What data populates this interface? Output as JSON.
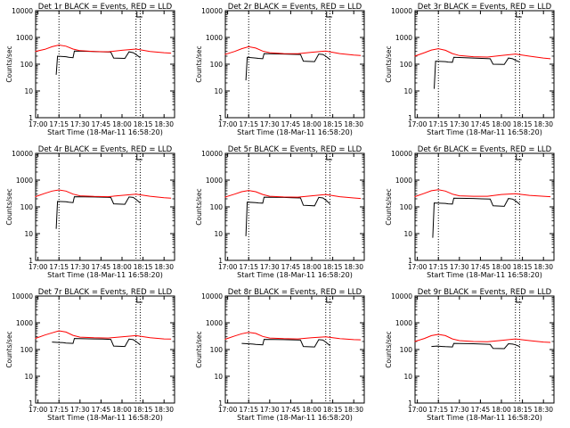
{
  "colors": {
    "events": "#000000",
    "lld": "#ff0000",
    "axis": "#000000",
    "marker": "#000000"
  },
  "chart_data": [
    {
      "type": "line",
      "title": "Det 1r BLACK = Events, RED = LLD",
      "xlabel": "Start Time (18-Mar-11 16:58:20)",
      "ylabel": "Counts/sec",
      "y_scale": "log",
      "ylim": [
        1,
        10000
      ],
      "x_ticks": [
        "17:00",
        "17:15",
        "17:30",
        "17:45",
        "18:00",
        "18:15",
        "18:30"
      ],
      "y_ticks": [
        "1",
        "10",
        "100",
        "1000",
        "10000"
      ],
      "vertical_markers": [
        "17:15",
        "18:10",
        "18:13"
      ],
      "grid": false,
      "series": [
        {
          "name": "Events",
          "x": [
            "17:13",
            "17:14",
            "17:20",
            "17:22",
            "17:25",
            "17:26",
            "17:40",
            "17:46",
            "17:52",
            "17:54",
            "18:02",
            "18:05",
            "18:08",
            "18:10",
            "18:13"
          ],
          "values": [
            40,
            200,
            190,
            180,
            175,
            310,
            300,
            290,
            285,
            170,
            165,
            290,
            270,
            230,
            175
          ]
        },
        {
          "name": "LLD",
          "x": [
            "16:58",
            "17:05",
            "17:10",
            "17:15",
            "17:20",
            "17:25",
            "17:30",
            "17:40",
            "17:50",
            "18:00",
            "18:10",
            "18:20",
            "18:30",
            "18:35"
          ],
          "values": [
            300,
            360,
            450,
            520,
            470,
            370,
            320,
            300,
            290,
            330,
            370,
            300,
            270,
            260
          ]
        }
      ]
    },
    {
      "type": "line",
      "title": "Det 2r BLACK = Events, RED = LLD",
      "xlabel": "Start Time (18-Mar-11 16:58:20)",
      "ylabel": "Counts/sec",
      "y_scale": "log",
      "ylim": [
        1,
        10000
      ],
      "x_ticks": [
        "17:00",
        "17:15",
        "17:30",
        "17:45",
        "18:00",
        "18:15",
        "18:30"
      ],
      "y_ticks": [
        "1",
        "10",
        "100",
        "1000",
        "10000"
      ],
      "vertical_markers": [
        "17:15",
        "18:10",
        "18:13"
      ],
      "grid": false,
      "series": [
        {
          "name": "Events",
          "x": [
            "17:13",
            "17:14",
            "17:20",
            "17:22",
            "17:25",
            "17:26",
            "17:40",
            "17:46",
            "17:52",
            "17:54",
            "18:02",
            "18:05",
            "18:08",
            "18:10",
            "18:13"
          ],
          "values": [
            25,
            180,
            170,
            165,
            160,
            250,
            240,
            235,
            230,
            130,
            125,
            240,
            230,
            200,
            150
          ]
        },
        {
          "name": "LLD",
          "x": [
            "16:58",
            "17:05",
            "17:10",
            "17:15",
            "17:20",
            "17:25",
            "17:30",
            "17:40",
            "17:50",
            "18:00",
            "18:10",
            "18:20",
            "18:30",
            "18:35"
          ],
          "values": [
            230,
            300,
            380,
            450,
            400,
            310,
            270,
            250,
            245,
            280,
            310,
            250,
            220,
            210
          ]
        }
      ]
    },
    {
      "type": "line",
      "title": "Det 3r BLACK = Events, RED = LLD",
      "xlabel": "Start Time (18-Mar-11 16:58:20)",
      "ylabel": "Counts/sec",
      "y_scale": "log",
      "ylim": [
        1,
        10000
      ],
      "x_ticks": [
        "17:00",
        "17:15",
        "17:30",
        "17:45",
        "18:00",
        "18:15",
        "18:30"
      ],
      "y_ticks": [
        "1",
        "10",
        "100",
        "1000",
        "10000"
      ],
      "vertical_markers": [
        "17:15",
        "18:10",
        "18:13"
      ],
      "grid": false,
      "series": [
        {
          "name": "Events",
          "x": [
            "17:12",
            "17:13",
            "17:20",
            "17:22",
            "17:25",
            "17:26",
            "17:40",
            "17:46",
            "17:52",
            "17:54",
            "18:02",
            "18:05",
            "18:08",
            "18:10",
            "18:13"
          ],
          "values": [
            12,
            130,
            125,
            120,
            118,
            180,
            170,
            165,
            160,
            100,
            98,
            170,
            160,
            140,
            120
          ]
        },
        {
          "name": "LLD",
          "x": [
            "16:58",
            "17:05",
            "17:10",
            "17:15",
            "17:20",
            "17:25",
            "17:30",
            "17:40",
            "17:50",
            "18:00",
            "18:10",
            "18:20",
            "18:30",
            "18:35"
          ],
          "values": [
            200,
            270,
            340,
            380,
            330,
            250,
            210,
            190,
            185,
            210,
            240,
            200,
            170,
            160
          ]
        }
      ]
    },
    {
      "type": "line",
      "title": "Det 4r BLACK = Events, RED = LLD",
      "xlabel": "Start Time (18-Mar-11 16:58:20)",
      "ylabel": "Counts/sec",
      "y_scale": "log",
      "ylim": [
        1,
        10000
      ],
      "x_ticks": [
        "17:00",
        "17:15",
        "17:30",
        "17:45",
        "18:00",
        "18:15",
        "18:30"
      ],
      "y_ticks": [
        "1",
        "10",
        "100",
        "1000",
        "10000"
      ],
      "vertical_markers": [
        "17:15",
        "18:10",
        "18:13"
      ],
      "grid": false,
      "series": [
        {
          "name": "Events",
          "x": [
            "17:13",
            "17:14",
            "17:20",
            "17:22",
            "17:25",
            "17:26",
            "17:40",
            "17:46",
            "17:52",
            "17:54",
            "18:02",
            "18:05",
            "18:08",
            "18:10",
            "18:13"
          ],
          "values": [
            15,
            160,
            155,
            150,
            145,
            240,
            235,
            230,
            225,
            130,
            125,
            235,
            225,
            190,
            140
          ]
        },
        {
          "name": "LLD",
          "x": [
            "16:58",
            "17:05",
            "17:10",
            "17:15",
            "17:20",
            "17:25",
            "17:30",
            "17:40",
            "17:50",
            "18:00",
            "18:10",
            "18:20",
            "18:30",
            "18:35"
          ],
          "values": [
            240,
            320,
            390,
            430,
            390,
            300,
            260,
            245,
            240,
            270,
            300,
            250,
            220,
            210
          ]
        }
      ]
    },
    {
      "type": "line",
      "title": "Det 5r BLACK = Events, RED = LLD",
      "xlabel": "Start Time (18-Mar-11 16:58:20)",
      "ylabel": "Counts/sec",
      "y_scale": "log",
      "ylim": [
        1,
        10000
      ],
      "x_ticks": [
        "17:00",
        "17:15",
        "17:30",
        "17:45",
        "18:00",
        "18:15",
        "18:30"
      ],
      "y_ticks": [
        "1",
        "10",
        "100",
        "1000",
        "10000"
      ],
      "vertical_markers": [
        "17:15",
        "18:10",
        "18:13"
      ],
      "grid": false,
      "series": [
        {
          "name": "Events",
          "x": [
            "17:13",
            "17:14",
            "17:20",
            "17:22",
            "17:25",
            "17:26",
            "17:40",
            "17:46",
            "17:52",
            "17:54",
            "18:02",
            "18:05",
            "18:08",
            "18:10",
            "18:13"
          ],
          "values": [
            8,
            150,
            145,
            140,
            138,
            230,
            225,
            220,
            215,
            115,
            110,
            225,
            215,
            180,
            130
          ]
        },
        {
          "name": "LLD",
          "x": [
            "16:58",
            "17:05",
            "17:10",
            "17:15",
            "17:20",
            "17:25",
            "17:30",
            "17:40",
            "17:50",
            "18:00",
            "18:10",
            "18:20",
            "18:30",
            "18:35"
          ],
          "values": [
            230,
            300,
            370,
            410,
            370,
            290,
            250,
            235,
            230,
            260,
            290,
            240,
            215,
            205
          ]
        }
      ]
    },
    {
      "type": "line",
      "title": "Det 6r BLACK = Events, RED = LLD",
      "xlabel": "Start Time (18-Mar-11 16:58:20)",
      "ylabel": "Counts/sec",
      "y_scale": "log",
      "ylim": [
        1,
        10000
      ],
      "x_ticks": [
        "17:00",
        "17:15",
        "17:30",
        "17:45",
        "18:00",
        "18:15",
        "18:30"
      ],
      "y_ticks": [
        "1",
        "10",
        "100",
        "1000",
        "10000"
      ],
      "vertical_markers": [
        "17:15",
        "18:10",
        "18:13"
      ],
      "grid": false,
      "series": [
        {
          "name": "Events",
          "x": [
            "17:11",
            "17:12",
            "17:20",
            "17:22",
            "17:25",
            "17:26",
            "17:40",
            "17:46",
            "17:52",
            "17:54",
            "18:02",
            "18:05",
            "18:08",
            "18:10",
            "18:13"
          ],
          "values": [
            7,
            140,
            135,
            130,
            128,
            210,
            205,
            200,
            195,
            110,
            105,
            205,
            195,
            170,
            125
          ]
        },
        {
          "name": "LLD",
          "x": [
            "16:58",
            "17:05",
            "17:10",
            "17:15",
            "17:20",
            "17:25",
            "17:30",
            "17:40",
            "17:50",
            "18:00",
            "18:10",
            "18:20",
            "18:30",
            "18:35"
          ],
          "values": [
            240,
            320,
            400,
            440,
            390,
            300,
            260,
            250,
            250,
            290,
            310,
            270,
            250,
            240
          ]
        }
      ]
    },
    {
      "type": "line",
      "title": "Det 7r BLACK = Events, RED = LLD",
      "xlabel": "Start Time (18-Mar-11 16:58:20)",
      "ylabel": "Counts/sec",
      "y_scale": "log",
      "ylim": [
        1,
        10000
      ],
      "x_ticks": [
        "17:00",
        "17:15",
        "17:30",
        "17:45",
        "18:00",
        "18:15",
        "18:30"
      ],
      "y_ticks": [
        "1",
        "10",
        "100",
        "1000",
        "10000"
      ],
      "vertical_markers": [
        "17:15",
        "18:10",
        "18:13"
      ],
      "grid": false,
      "series": [
        {
          "name": "Events",
          "x": [
            "17:10",
            "17:14",
            "17:18",
            "17:20",
            "17:25",
            "17:26",
            "17:40",
            "17:46",
            "17:52",
            "17:54",
            "18:02",
            "18:05",
            "18:08",
            "18:10",
            "18:13"
          ],
          "values": [
            190,
            185,
            180,
            175,
            170,
            260,
            250,
            245,
            240,
            135,
            130,
            245,
            235,
            200,
            150
          ]
        },
        {
          "name": "LLD",
          "x": [
            "16:58",
            "17:05",
            "17:10",
            "17:15",
            "17:20",
            "17:25",
            "17:30",
            "17:40",
            "17:50",
            "18:00",
            "18:10",
            "18:20",
            "18:30",
            "18:35"
          ],
          "values": [
            260,
            350,
            420,
            500,
            450,
            340,
            290,
            275,
            270,
            300,
            330,
            275,
            250,
            245
          ]
        }
      ]
    },
    {
      "type": "line",
      "title": "Det 8r BLACK = Events, RED = LLD",
      "xlabel": "Start Time (18-Mar-11 16:58:20)",
      "ylabel": "Counts/sec",
      "y_scale": "log",
      "ylim": [
        1,
        10000
      ],
      "x_ticks": [
        "17:00",
        "17:15",
        "17:30",
        "17:45",
        "18:00",
        "18:15",
        "18:30"
      ],
      "y_ticks": [
        "1",
        "10",
        "100",
        "1000",
        "10000"
      ],
      "vertical_markers": [
        "17:15",
        "18:10",
        "18:13"
      ],
      "grid": false,
      "series": [
        {
          "name": "Events",
          "x": [
            "17:10",
            "17:14",
            "17:18",
            "17:20",
            "17:25",
            "17:26",
            "17:40",
            "17:46",
            "17:52",
            "17:54",
            "18:02",
            "18:05",
            "18:08",
            "18:10",
            "18:13"
          ],
          "values": [
            170,
            165,
            160,
            155,
            150,
            240,
            235,
            230,
            225,
            130,
            125,
            235,
            225,
            190,
            140
          ]
        },
        {
          "name": "LLD",
          "x": [
            "16:58",
            "17:05",
            "17:10",
            "17:15",
            "17:20",
            "17:25",
            "17:30",
            "17:40",
            "17:50",
            "18:00",
            "18:10",
            "18:20",
            "18:30",
            "18:35"
          ],
          "values": [
            240,
            320,
            390,
            440,
            400,
            310,
            270,
            255,
            250,
            275,
            300,
            255,
            235,
            230
          ]
        }
      ]
    },
    {
      "type": "line",
      "title": "Det 9r BLACK = Events, RED = LLD",
      "xlabel": "Start Time (18-Mar-11 16:58:20)",
      "ylabel": "Counts/sec",
      "y_scale": "log",
      "ylim": [
        1,
        10000
      ],
      "x_ticks": [
        "17:00",
        "17:15",
        "17:30",
        "17:45",
        "18:00",
        "18:15",
        "18:30"
      ],
      "y_ticks": [
        "1",
        "10",
        "100",
        "1000",
        "10000"
      ],
      "vertical_markers": [
        "17:15",
        "18:10",
        "18:13"
      ],
      "grid": false,
      "series": [
        {
          "name": "Events",
          "x": [
            "17:10",
            "17:14",
            "17:18",
            "17:20",
            "17:25",
            "17:26",
            "17:40",
            "17:46",
            "17:52",
            "17:54",
            "18:02",
            "18:05",
            "18:08",
            "18:10",
            "18:13"
          ],
          "values": [
            130,
            135,
            130,
            128,
            125,
            170,
            165,
            160,
            155,
            110,
            108,
            165,
            160,
            150,
            130
          ]
        },
        {
          "name": "LLD",
          "x": [
            "16:58",
            "17:05",
            "17:10",
            "17:15",
            "17:20",
            "17:25",
            "17:30",
            "17:40",
            "17:50",
            "18:00",
            "18:10",
            "18:20",
            "18:30",
            "18:35"
          ],
          "values": [
            200,
            260,
            330,
            370,
            330,
            250,
            215,
            200,
            195,
            220,
            250,
            215,
            190,
            185
          ]
        }
      ]
    }
  ]
}
